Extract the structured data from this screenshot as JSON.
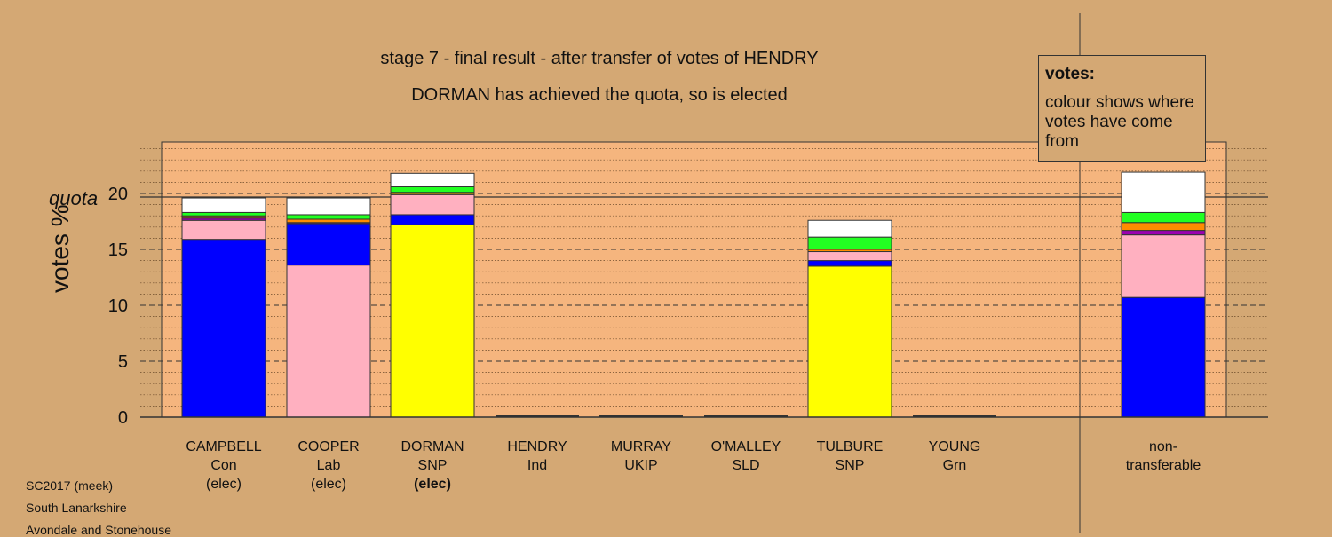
{
  "title": "stage 7 - final result - after transfer of votes of HENDRY",
  "subtitle": "DORMAN has achieved the quota, so is elected",
  "quota_label": "quota",
  "legend": {
    "title": "votes:",
    "body": "colour shows where votes have come from"
  },
  "footer": [
    "SC2017 (meek)",
    "South Lanarkshire",
    "Avondale and Stonehouse"
  ],
  "colors": {
    "background": "#d4a874",
    "plot_fill": "#f5b57e",
    "Con": "#0000ff",
    "Lab": "#ffb0c0",
    "SNP": "#ffff00",
    "Ind": "#888888",
    "UKIP": "#9b00b0",
    "SLD": "#ff8c00",
    "Grn": "#22ff22",
    "nontransferable": "#ffffff",
    "SLD_thin": "#b8860b"
  },
  "chart_data": {
    "type": "bar",
    "stacked": true,
    "title": "stage 7 - final result - after transfer of votes of HENDRY",
    "subtitle": "DORMAN has achieved the quota, so is elected",
    "ylabel": "votes %",
    "ylim": [
      0,
      24
    ],
    "yticks": [
      0,
      5,
      10,
      15,
      20
    ],
    "quota": 20,
    "categories": [
      {
        "name": "CAMPBELL",
        "party": "Con",
        "status": "(elec)",
        "bold_status": false
      },
      {
        "name": "COOPER",
        "party": "Lab",
        "status": "(elec)",
        "bold_status": false
      },
      {
        "name": "DORMAN",
        "party": "SNP",
        "status": "(elec)",
        "bold_status": true
      },
      {
        "name": "HENDRY",
        "party": "Ind",
        "status": "",
        "bold_status": false
      },
      {
        "name": "MURRAY",
        "party": "UKIP",
        "status": "",
        "bold_status": false
      },
      {
        "name": "O'MALLEY",
        "party": "SLD",
        "status": "",
        "bold_status": false
      },
      {
        "name": "TULBURE",
        "party": "SNP",
        "status": "",
        "bold_status": false
      },
      {
        "name": "YOUNG",
        "party": "Grn",
        "status": "",
        "bold_status": false
      },
      {
        "name": "non-",
        "party": "transferable",
        "status": "",
        "bold_status": false
      }
    ],
    "stacks": [
      [
        {
          "from": "Con",
          "value": 15.9
        },
        {
          "from": "Lab",
          "value": 1.7
        },
        {
          "from": "UKIP",
          "value": 0.2
        },
        {
          "from": "SLD",
          "value": 0.2
        },
        {
          "from": "Grn",
          "value": 0.3
        },
        {
          "from": "nontransferable",
          "value": 1.3
        }
      ],
      [
        {
          "from": "Lab",
          "value": 13.6
        },
        {
          "from": "Con",
          "value": 3.7
        },
        {
          "from": "UKIP",
          "value": 0.1
        },
        {
          "from": "SLD",
          "value": 0.3
        },
        {
          "from": "Grn",
          "value": 0.4
        },
        {
          "from": "nontransferable",
          "value": 1.5
        }
      ],
      [
        {
          "from": "SNP",
          "value": 17.2
        },
        {
          "from": "Con",
          "value": 0.9
        },
        {
          "from": "Lab",
          "value": 1.8
        },
        {
          "from": "SLD_thin",
          "value": 0.2
        },
        {
          "from": "Grn",
          "value": 0.5
        },
        {
          "from": "nontransferable",
          "value": 1.2
        }
      ],
      [],
      [],
      [],
      [
        {
          "from": "SNP",
          "value": 13.5
        },
        {
          "from": "Con",
          "value": 0.5
        },
        {
          "from": "Lab",
          "value": 0.8
        },
        {
          "from": "SLD",
          "value": 0.2
        },
        {
          "from": "Grn",
          "value": 1.1
        },
        {
          "from": "nontransferable",
          "value": 1.5
        }
      ],
      [],
      [
        {
          "from": "Con",
          "value": 10.7
        },
        {
          "from": "Lab",
          "value": 5.6
        },
        {
          "from": "UKIP",
          "value": 0.4
        },
        {
          "from": "SLD",
          "value": 0.7
        },
        {
          "from": "Grn",
          "value": 0.9
        },
        {
          "from": "nontransferable",
          "value": 3.6
        }
      ]
    ]
  }
}
